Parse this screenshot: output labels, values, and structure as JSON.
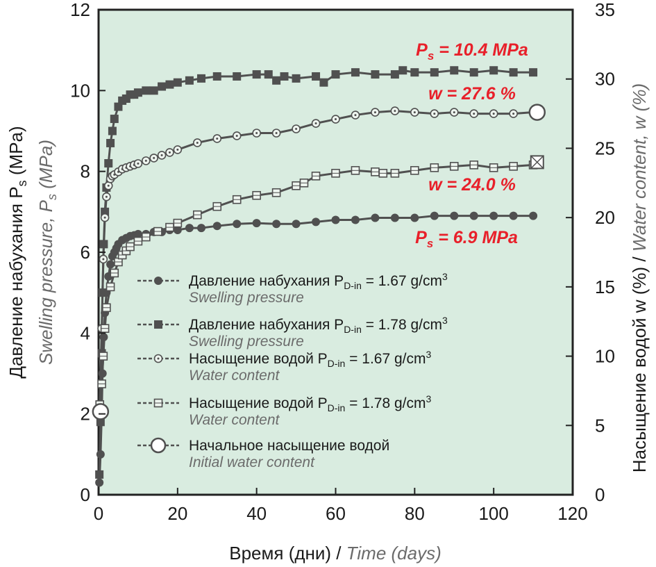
{
  "chart_data": {
    "type": "scatter",
    "x_axis": {
      "label_ru": "Время (дни)",
      "label_sep": " / ",
      "label_en": "Time (days)",
      "range": [
        0,
        120
      ],
      "ticks": [
        "0",
        "20",
        "40",
        "60",
        "80",
        "100",
        "120"
      ]
    },
    "y_left": {
      "label_ru_main": "Давление набухания P",
      "label_ru_sub": "s",
      "label_ru_end": " (MPa)",
      "label_en_main": "Swelling pressure, P",
      "label_en_sub": "s",
      "label_en_end": " (MPa)",
      "range": [
        0,
        12
      ],
      "ticks": [
        "0",
        "2",
        "4",
        "6",
        "8",
        "10",
        "12"
      ]
    },
    "y_right": {
      "label_ru": "Насыщение водой w (%)",
      "label_sep": " / ",
      "label_en": "Water content, w (%)",
      "range": [
        0,
        35
      ],
      "ticks": [
        "0",
        "5",
        "10",
        "15",
        "20",
        "25",
        "30",
        "35"
      ]
    },
    "background": "#d9ece0",
    "series": [
      {
        "name": "Давление набухания P_D-in = 1.67 g/cm³",
        "axis": "left",
        "marker": "circle-filled",
        "color": "#505050",
        "x": [
          0.2,
          0.5,
          0.8,
          1,
          1.3,
          1.6,
          2,
          2.5,
          3,
          3.5,
          4,
          4.5,
          5,
          6,
          7,
          8,
          9,
          10,
          12,
          14,
          16,
          18,
          20,
          23,
          26,
          30,
          35,
          40,
          45,
          50,
          55,
          60,
          65,
          70,
          75,
          80,
          85,
          90,
          95,
          100,
          105,
          110
        ],
        "y": [
          0.3,
          1.0,
          2.0,
          3.0,
          3.9,
          4.5,
          5.0,
          5.4,
          5.7,
          5.9,
          6.0,
          6.1,
          6.2,
          6.3,
          6.35,
          6.4,
          6.42,
          6.45,
          6.45,
          6.5,
          6.5,
          6.55,
          6.55,
          6.6,
          6.6,
          6.65,
          6.7,
          6.72,
          6.7,
          6.7,
          6.75,
          6.8,
          6.8,
          6.85,
          6.85,
          6.85,
          6.9,
          6.9,
          6.9,
          6.9,
          6.9,
          6.9
        ]
      },
      {
        "name": "Давление набухания P_D-in = 1.78 g/cm³",
        "axis": "left",
        "marker": "square-filled",
        "color": "#505050",
        "x": [
          0.2,
          0.5,
          0.8,
          1,
          1.3,
          1.6,
          2,
          2.5,
          3,
          3.5,
          4,
          5,
          6,
          7,
          8,
          9,
          10,
          12,
          14,
          16,
          18,
          20,
          23,
          26,
          30,
          35,
          40,
          43,
          45,
          47,
          50,
          55,
          57,
          60,
          65,
          70,
          75,
          77,
          80,
          85,
          90,
          95,
          100,
          105,
          110
        ],
        "y": [
          0.5,
          1.8,
          3.5,
          5.0,
          6.2,
          7.0,
          7.6,
          8.2,
          8.7,
          9.0,
          9.3,
          9.6,
          9.75,
          9.8,
          9.9,
          9.9,
          9.95,
          10.0,
          10.0,
          10.1,
          10.15,
          10.2,
          10.25,
          10.3,
          10.35,
          10.35,
          10.4,
          10.4,
          10.25,
          10.35,
          10.3,
          10.35,
          10.2,
          10.4,
          10.45,
          10.4,
          10.4,
          10.5,
          10.45,
          10.45,
          10.5,
          10.45,
          10.5,
          10.45,
          10.45
        ]
      },
      {
        "name": "Насыщение водой P_D-in = 1.67 g/cm³",
        "axis": "right",
        "marker": "circle-open",
        "color": "#505050",
        "x": [
          0.3,
          0.8,
          1.2,
          1.6,
          2,
          2.5,
          3,
          3.5,
          4,
          5,
          6,
          7,
          8,
          9,
          10,
          12,
          14,
          16,
          18,
          20,
          25,
          30,
          35,
          40,
          45,
          50,
          55,
          60,
          65,
          70,
          75,
          80,
          85,
          90,
          95,
          100,
          105,
          110
        ],
        "y": [
          6.5,
          12,
          17,
          20,
          21.5,
          22.3,
          22.8,
          23.0,
          23.1,
          23.3,
          23.5,
          23.6,
          23.7,
          23.8,
          23.9,
          24.1,
          24.3,
          24.5,
          24.7,
          24.9,
          25.4,
          25.7,
          25.9,
          26.1,
          26.1,
          26.4,
          26.8,
          27.1,
          27.4,
          27.6,
          27.7,
          27.6,
          27.5,
          27.6,
          27.5,
          27.5,
          27.5,
          27.6
        ]
      },
      {
        "name": "Насыщение водой P_D-in = 1.78 g/cm³",
        "axis": "right",
        "marker": "square-open",
        "color": "#505050",
        "x": [
          0.3,
          0.8,
          1.2,
          1.6,
          2,
          3,
          4,
          5,
          6,
          7,
          8,
          10,
          12,
          15,
          18,
          20,
          25,
          30,
          35,
          40,
          45,
          50,
          52,
          55,
          60,
          65,
          70,
          72,
          75,
          80,
          85,
          90,
          95,
          100,
          105,
          110
        ],
        "y": [
          6.5,
          8,
          10,
          12,
          13.5,
          15,
          16,
          16.8,
          17.3,
          17.6,
          17.9,
          18.3,
          18.6,
          19.0,
          19.3,
          19.6,
          20.2,
          20.8,
          21.3,
          21.6,
          21.8,
          22.3,
          22.5,
          23.0,
          23.2,
          23.4,
          23.3,
          23.2,
          23.2,
          23.4,
          23.6,
          23.7,
          23.8,
          23.6,
          23.7,
          23.8
        ]
      },
      {
        "name": "Начальное насыщение водой",
        "axis": "right",
        "marker": "circle-large-open",
        "color": "#505050",
        "x": [
          0.5
        ],
        "y": [
          6.0
        ]
      }
    ],
    "endpoints": [
      {
        "axis": "right",
        "marker": "circle-large-open",
        "x": 111,
        "y": 27.6
      },
      {
        "axis": "right",
        "marker": "square-cross",
        "x": 111,
        "y": 24.0
      }
    ],
    "annotations": [
      {
        "id": "a1",
        "main": "P",
        "sub": "s",
        "rest": " = 10.4 MPa",
        "color": "#e8202a"
      },
      {
        "id": "a2",
        "main": "w = 27.6 %",
        "sub": "",
        "rest": "",
        "color": "#e8202a"
      },
      {
        "id": "a3",
        "main": "w = 24.0 %",
        "sub": "",
        "rest": "",
        "color": "#e8202a"
      },
      {
        "id": "a4",
        "main": "P",
        "sub": "s",
        "rest": " = 6.9 MPa",
        "color": "#e8202a"
      }
    ],
    "legend": [
      {
        "marker": "circle-filled",
        "ru": "Давление набухания P",
        "sub": "D-in",
        "val": " = 1.67 g/cm",
        "sup": "3",
        "en": "Swelling pressure"
      },
      {
        "marker": "square-filled",
        "ru": "Давление набухания P",
        "sub": "D-in",
        "val": " = 1.78 g/cm",
        "sup": "3",
        "en": "Swelling pressure"
      },
      {
        "marker": "circle-open",
        "ru": "Насыщение водой P",
        "sub": "D-in",
        "val": " = 1.67 g/cm",
        "sup": "3",
        "en": "Water content"
      },
      {
        "marker": "square-open",
        "ru": "Насыщение водой P",
        "sub": "D-in",
        "val": " = 1.78 g/cm",
        "sup": "3",
        "en": "Water content"
      },
      {
        "marker": "circle-large-open",
        "ru": "Начальное насыщение водой",
        "sub": "",
        "val": "",
        "sup": "",
        "en": "Initial water content"
      }
    ]
  }
}
